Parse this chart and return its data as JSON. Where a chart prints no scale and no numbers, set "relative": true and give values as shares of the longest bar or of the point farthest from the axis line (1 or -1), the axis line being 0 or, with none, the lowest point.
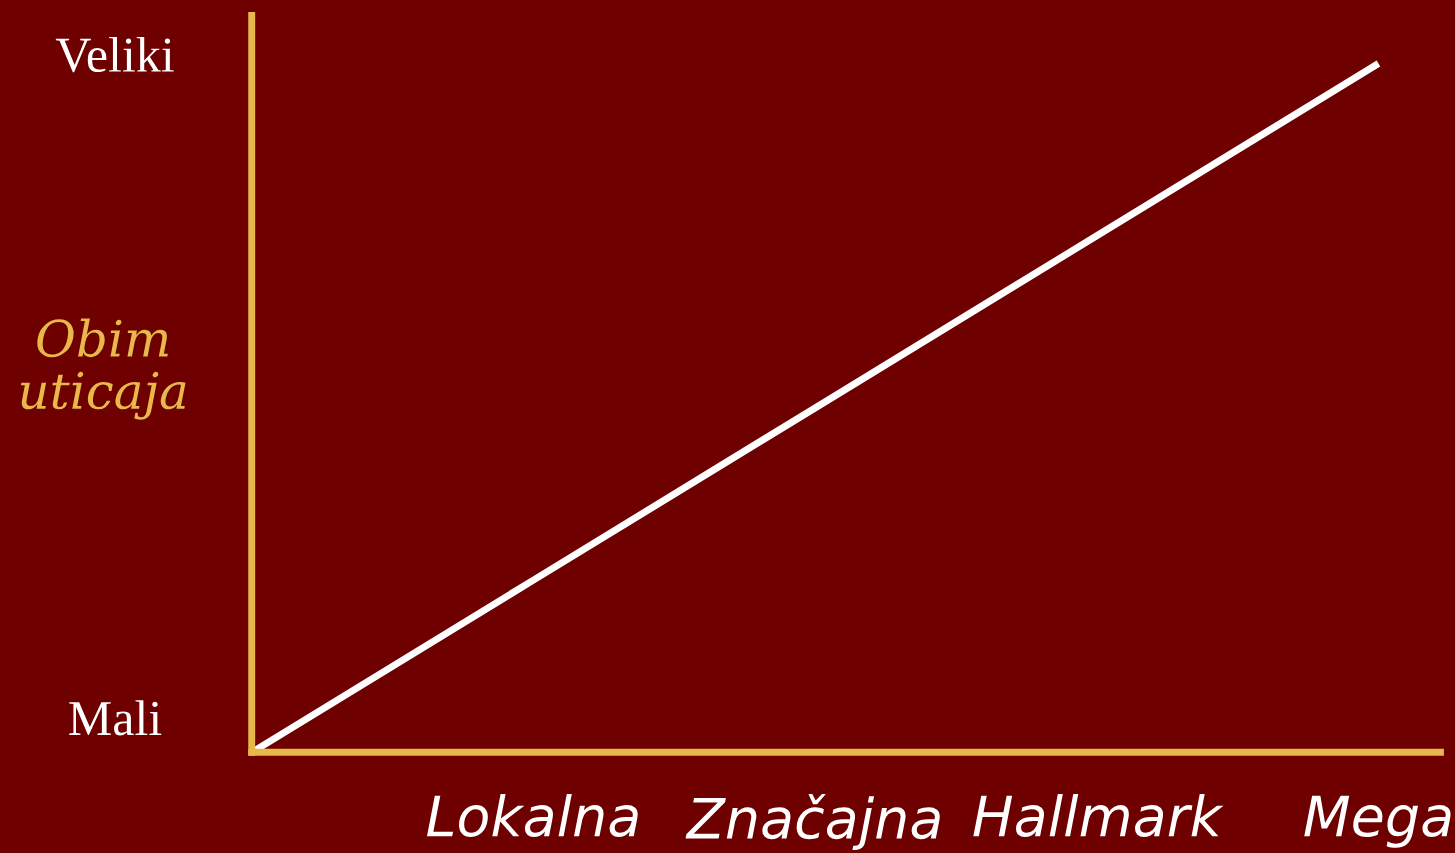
{
  "chart_data": {
    "type": "line",
    "ylabel": "Obim\nuticaja",
    "relative": true,
    "categories": [
      null,
      "Lokalna",
      "Značajna",
      "Hallmark",
      "Mega"
    ],
    "annotations": [
      "Veliki",
      "Mali"
    ],
    "series": [
      {
        "color": "#ffffff",
        "values": [
          0,
          0.25,
          0.5,
          0.75,
          1
        ]
      }
    ],
    "grid": false,
    "legend": false,
    "marker": "none",
    "line_style": "solid"
  }
}
